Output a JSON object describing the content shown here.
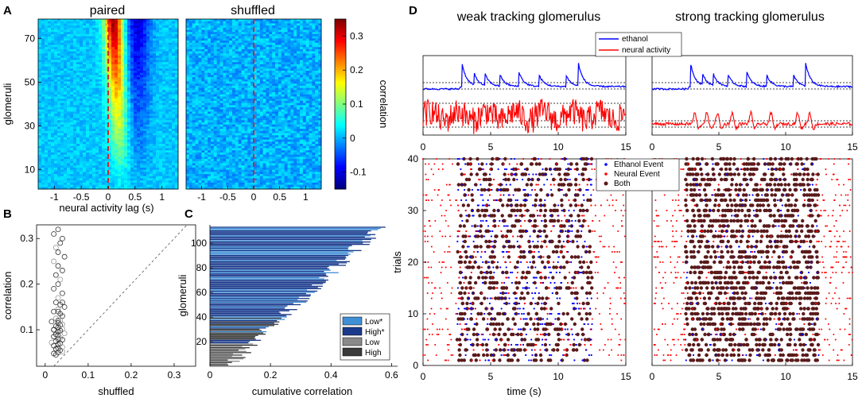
{
  "panels": {
    "A": "A",
    "B": "B",
    "C": "C",
    "D": "D"
  },
  "chart_data": [
    {
      "id": "A",
      "type": "heatmap",
      "titles": [
        "paired",
        "shuffled"
      ],
      "xlabel": "neural activity lag (s)",
      "ylabel": "glomeruli",
      "xlim": [
        -1.3,
        1.3
      ],
      "ylim": [
        1,
        79
      ],
      "xticks": [
        -1,
        -0.5,
        0,
        0.5,
        1
      ],
      "xtick_labels": [
        "-1",
        "-0.5",
        "0",
        "0.5",
        "1"
      ],
      "yticks": [
        10,
        30,
        50,
        70
      ],
      "ytick_labels": [
        "10",
        "30",
        "50",
        "70"
      ],
      "rows": 79,
      "peak_lag_s": 0.1,
      "marker_line_x": 0,
      "colorbar": {
        "label": "correlation",
        "range": [
          -0.15,
          0.35
        ],
        "ticks": [
          -0.1,
          0,
          0.1,
          0.2,
          0.3
        ],
        "tick_labels": [
          "-0.1",
          "0",
          "0.1",
          "0.2",
          "0.3"
        ]
      },
      "colors": {
        "marker": "#d62728"
      }
    },
    {
      "id": "B",
      "type": "scatter",
      "xlabel": "shuffled",
      "ylabel": "correlation",
      "xlim": [
        -0.02,
        0.35
      ],
      "ylim": [
        0.02,
        0.33
      ],
      "xticks": [
        0,
        0.1,
        0.2,
        0.3
      ],
      "xtick_labels": [
        "0",
        "0.1",
        "0.2",
        "0.3"
      ],
      "yticks": [
        0.1,
        0.2,
        0.3
      ],
      "ytick_labels": [
        "0.1",
        "0.2",
        "0.3"
      ],
      "diagonal": true,
      "points": {
        "x": [
          0.02,
          0.03,
          0.04,
          0.025,
          0.035,
          0.03,
          0.045,
          0.02,
          0.03,
          0.04,
          0.025,
          0.035,
          0.03,
          0.02,
          0.04,
          0.03,
          0.025,
          0.035,
          0.045,
          0.03,
          0.02,
          0.035,
          0.04,
          0.025,
          0.03,
          0.015,
          0.03,
          0.04,
          0.035,
          0.025,
          0.03,
          0.04,
          0.02,
          0.035,
          0.03,
          0.045,
          0.025,
          0.03,
          0.02,
          0.035,
          0.03,
          0.04,
          0.025,
          0.015,
          0.035,
          0.03,
          0.02,
          0.04,
          0.03,
          0.025,
          0.035,
          0.04,
          0.03,
          0.02,
          0.025,
          0.035,
          0.03,
          0.04,
          0.02,
          0.03
        ],
        "y": [
          0.31,
          0.32,
          0.3,
          0.28,
          0.29,
          0.27,
          0.26,
          0.25,
          0.24,
          0.23,
          0.22,
          0.21,
          0.2,
          0.19,
          0.18,
          0.17,
          0.16,
          0.155,
          0.15,
          0.145,
          0.14,
          0.135,
          0.13,
          0.125,
          0.12,
          0.118,
          0.115,
          0.112,
          0.11,
          0.108,
          0.105,
          0.102,
          0.1,
          0.098,
          0.095,
          0.092,
          0.09,
          0.088,
          0.085,
          0.082,
          0.08,
          0.078,
          0.075,
          0.072,
          0.07,
          0.068,
          0.065,
          0.062,
          0.06,
          0.058,
          0.055,
          0.052,
          0.05,
          0.048,
          0.045,
          0.12,
          0.14,
          0.16,
          0.1,
          0.09
        ]
      }
    },
    {
      "id": "C",
      "type": "bar",
      "orientation": "horizontal",
      "xlabel": "cumulative correlation",
      "ylabel": "glomeruli",
      "xlim": [
        0,
        0.62
      ],
      "ylim": [
        0,
        115
      ],
      "xticks": [
        0,
        0.2,
        0.4,
        0.6
      ],
      "xtick_labels": [
        "0",
        "0.2",
        "0.4",
        "0.6"
      ],
      "yticks": [
        20,
        40,
        60,
        80,
        100
      ],
      "ytick_labels": [
        "20",
        "40",
        "60",
        "80",
        "100"
      ],
      "n_bars": 113,
      "max_value": 0.58,
      "legend": [
        "Low*",
        "High*",
        "Low",
        "High"
      ],
      "colors": {
        "Low*": "#3f8fd6",
        "High*": "#1a3a8c",
        "Low": "#8a8a8a",
        "High": "#3a3a3a"
      }
    },
    {
      "id": "D_traces",
      "type": "line",
      "titles": [
        "weak tracking glomerulus",
        "strong tracking glomerulus"
      ],
      "xlim": [
        0,
        15
      ],
      "xticks": [
        0,
        5,
        10,
        15
      ],
      "xtick_labels": [
        "0",
        "5",
        "10",
        "15"
      ],
      "series": [
        {
          "name": "ethanol",
          "color": "#0000ff"
        },
        {
          "name": "neural activity",
          "color": "#ff0000"
        }
      ],
      "ethanol_peaks_s": [
        2.9,
        3.8,
        4.6,
        5.7,
        7.1,
        8.6,
        10.6,
        11.5
      ]
    },
    {
      "id": "D_raster",
      "type": "scatter",
      "xlabel": "time (s)",
      "ylabel": "trials",
      "xlim": [
        0,
        15
      ],
      "ylim": [
        0,
        40
      ],
      "xticks": [
        0,
        5,
        10,
        15
      ],
      "xtick_labels": [
        "0",
        "5",
        "10",
        "15"
      ],
      "yticks": [
        0,
        10,
        20,
        30,
        40
      ],
      "ytick_labels": [
        "0",
        "10",
        "20",
        "30",
        "40"
      ],
      "n_trials": 40,
      "stimulus_window_s": [
        2.5,
        12.5
      ],
      "legend": [
        "Ethanol Event",
        "Neural Event",
        "Both"
      ],
      "colors": {
        "Ethanol Event": "#0000ff",
        "Neural Event": "#ff0000",
        "Both": "#5a1a1a"
      }
    }
  ]
}
